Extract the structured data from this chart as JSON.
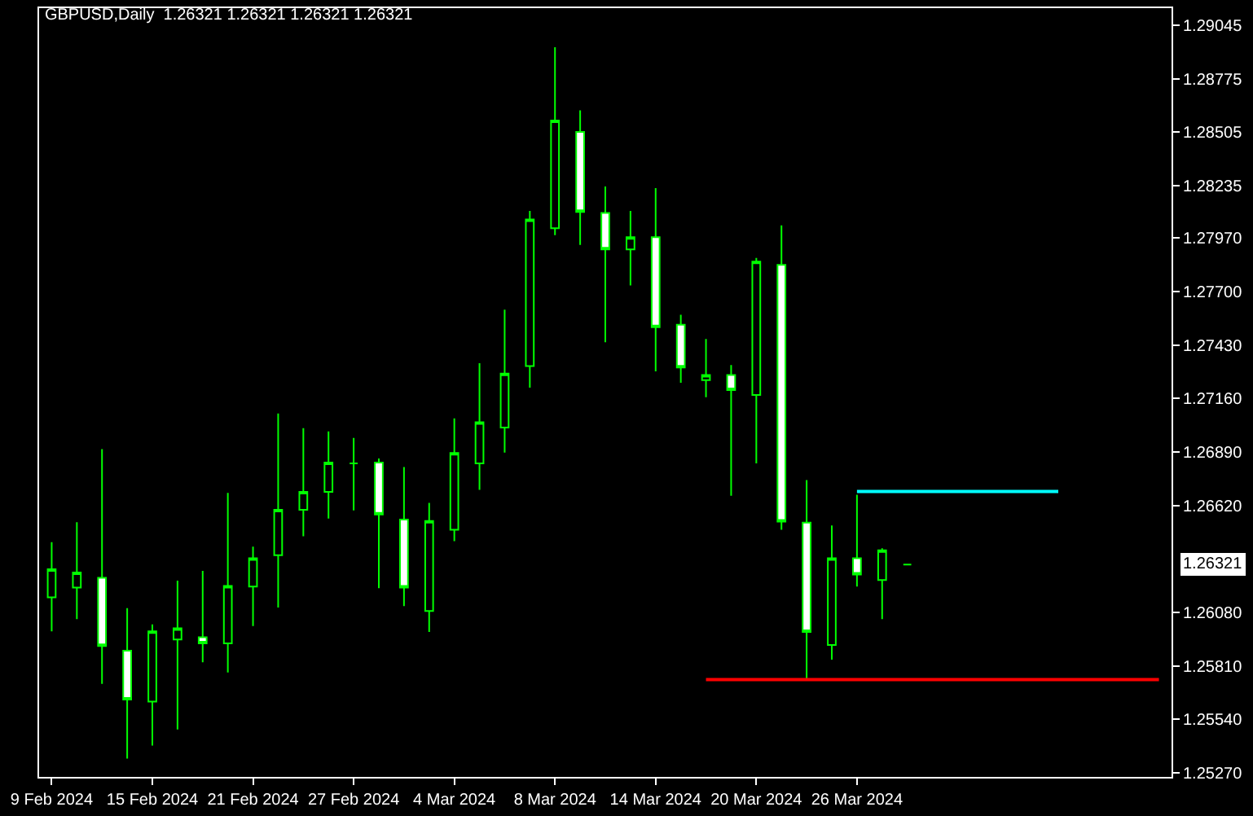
{
  "chart_data": {
    "type": "candlestick",
    "title": "GBPUSD,Daily  1.26321 1.26321 1.26321 1.26321",
    "categories": [
      "9 Feb 2024",
      null,
      null,
      null,
      "15 Feb 2024",
      null,
      null,
      null,
      "21 Feb 2024",
      null,
      null,
      null,
      "27 Feb 2024",
      null,
      null,
      null,
      "4 Mar 2024",
      null,
      null,
      null,
      "8 Mar 2024",
      null,
      null,
      null,
      "14 Mar 2024",
      null,
      null,
      null,
      "20 Mar 2024",
      null,
      null,
      null,
      "26 Mar 2024",
      null,
      null,
      null,
      null,
      null,
      null,
      null,
      null,
      null,
      null,
      null,
      null
    ],
    "ohlc": [
      [
        1.26156,
        1.26434,
        1.25984,
        1.26298
      ],
      [
        1.26205,
        1.26535,
        1.26046,
        1.26281
      ],
      [
        1.26254,
        1.26904,
        1.25719,
        1.2591
      ],
      [
        1.25886,
        1.26101,
        1.25342,
        1.2564
      ],
      [
        1.25629,
        1.26019,
        1.25407,
        1.25984
      ],
      [
        1.25943,
        1.2624,
        1.25489,
        1.26
      ],
      [
        1.25954,
        1.26289,
        1.25828,
        1.25923
      ],
      [
        1.25923,
        1.26683,
        1.25776,
        1.26213
      ],
      [
        1.2621,
        1.26412,
        1.26011,
        1.26353
      ],
      [
        1.26369,
        1.27084,
        1.26104,
        1.26598
      ],
      [
        1.26598,
        1.2701,
        1.26464,
        1.26688
      ],
      [
        1.26688,
        1.26994,
        1.26554,
        1.26836
      ],
      [
        1.26832,
        1.26961,
        1.26595,
        1.26832
      ],
      [
        1.26836,
        1.26857,
        1.26202,
        1.26574
      ],
      [
        1.26549,
        1.26814,
        1.26112,
        1.26205
      ],
      [
        1.26087,
        1.26633,
        1.25981,
        1.26541
      ],
      [
        1.26497,
        1.27059,
        1.26439,
        1.26885
      ],
      [
        1.26832,
        1.27338,
        1.26699,
        1.2704
      ],
      [
        1.27013,
        1.27608,
        1.26887,
        1.27286
      ],
      [
        1.27324,
        1.28107,
        1.27215,
        1.28064
      ],
      [
        1.2802,
        1.28934,
        1.27985,
        1.28564
      ],
      [
        1.28506,
        1.28615,
        1.27935,
        1.28102
      ],
      [
        1.28097,
        1.2823,
        1.27444,
        1.27913
      ],
      [
        1.27913,
        1.28107,
        1.27731,
        1.27974
      ],
      [
        1.27974,
        1.28222,
        1.27297,
        1.2752
      ],
      [
        1.27532,
        1.27583,
        1.27239,
        1.27316
      ],
      [
        1.27253,
        1.2746,
        1.27166,
        1.27278
      ],
      [
        1.27278,
        1.27329,
        1.26669,
        1.27202
      ],
      [
        1.27178,
        1.2787,
        1.26832,
        1.27851
      ],
      [
        1.27835,
        1.28034,
        1.26497,
        1.26538
      ],
      [
        1.26533,
        1.26748,
        1.25743,
        1.25981
      ],
      [
        1.25915,
        1.26519,
        1.25841,
        1.26353
      ],
      [
        1.26353,
        1.26674,
        1.2621,
        1.26271
      ],
      [
        1.26243,
        1.26404,
        1.26046,
        1.26393
      ],
      [
        1.26321,
        1.26321,
        1.26321,
        1.26321
      ],
      null,
      null,
      null,
      null,
      null,
      null,
      null,
      null,
      null,
      null
    ],
    "color": "#00ff00",
    "colors": [
      "#000000",
      "#000000",
      "#ffffff",
      "#ffffff",
      "#000000",
      "#000000",
      "#ffffff",
      "#000000",
      "#000000",
      "#000000",
      "#000000",
      "#000000",
      "#00ff00",
      "#ffffff",
      "#ffffff",
      "#000000",
      "#000000",
      "#000000",
      "#000000",
      "#000000",
      "#000000",
      "#ffffff",
      "#ffffff",
      "#000000",
      "#ffffff",
      "#ffffff",
      "#000000",
      "#ffffff",
      "#000000",
      "#ffffff",
      "#ffffff",
      "#000000",
      "#ffffff",
      "#000000",
      "#00ff00",
      null,
      null,
      null,
      null,
      null,
      null,
      null,
      null,
      null,
      null
    ],
    "series": [
      {
        "type": "line",
        "color": "#00ffff",
        "values": [
          null,
          null,
          null,
          null,
          null,
          null,
          null,
          null,
          null,
          null,
          null,
          null,
          null,
          null,
          null,
          null,
          null,
          null,
          null,
          null,
          null,
          null,
          null,
          null,
          null,
          null,
          null,
          null,
          null,
          null,
          null,
          null,
          1.2669,
          1.2669,
          1.2669,
          1.2669,
          1.2669,
          1.2669,
          1.2669,
          1.2669,
          1.2669,
          null,
          null,
          null,
          null
        ]
      },
      {
        "type": "line",
        "color": "#ff0000",
        "values": [
          null,
          null,
          null,
          null,
          null,
          null,
          null,
          null,
          null,
          null,
          null,
          null,
          null,
          null,
          null,
          null,
          null,
          null,
          null,
          null,
          null,
          null,
          null,
          null,
          null,
          null,
          1.2574,
          1.2574,
          1.2574,
          1.2574,
          1.2574,
          1.2574,
          1.2574,
          1.2574,
          1.2574,
          1.2574,
          1.2574,
          1.2574,
          1.2574,
          1.2574,
          1.2574,
          1.2574,
          1.2574,
          1.2574,
          1.2574
        ]
      }
    ],
    "ylim": [
      1.25249,
      1.29131
    ],
    "yticks": [
      {
        "value": 1.29045,
        "label": "1.29045"
      },
      {
        "value": 1.28775,
        "label": "1.28775"
      },
      {
        "value": 1.28505,
        "label": "1.28505"
      },
      {
        "value": 1.28235,
        "label": "1.28235"
      },
      {
        "value": 1.2797,
        "label": "1.27970"
      },
      {
        "value": 1.277,
        "label": "1.27700"
      },
      {
        "value": 1.2743,
        "label": "1.27430"
      },
      {
        "value": 1.2716,
        "label": "1.27160"
      },
      {
        "value": 1.2689,
        "label": "1.26890"
      },
      {
        "value": 1.2662,
        "label": "1.26620"
      },
      {
        "value": 1.2608,
        "label": "1.26080"
      },
      {
        "value": 1.2581,
        "label": "1.25810"
      },
      {
        "value": 1.2554,
        "label": "1.25540"
      },
      {
        "value": 1.2527,
        "label": "1.25270"
      }
    ],
    "annotations": [
      "1.26321"
    ]
  }
}
